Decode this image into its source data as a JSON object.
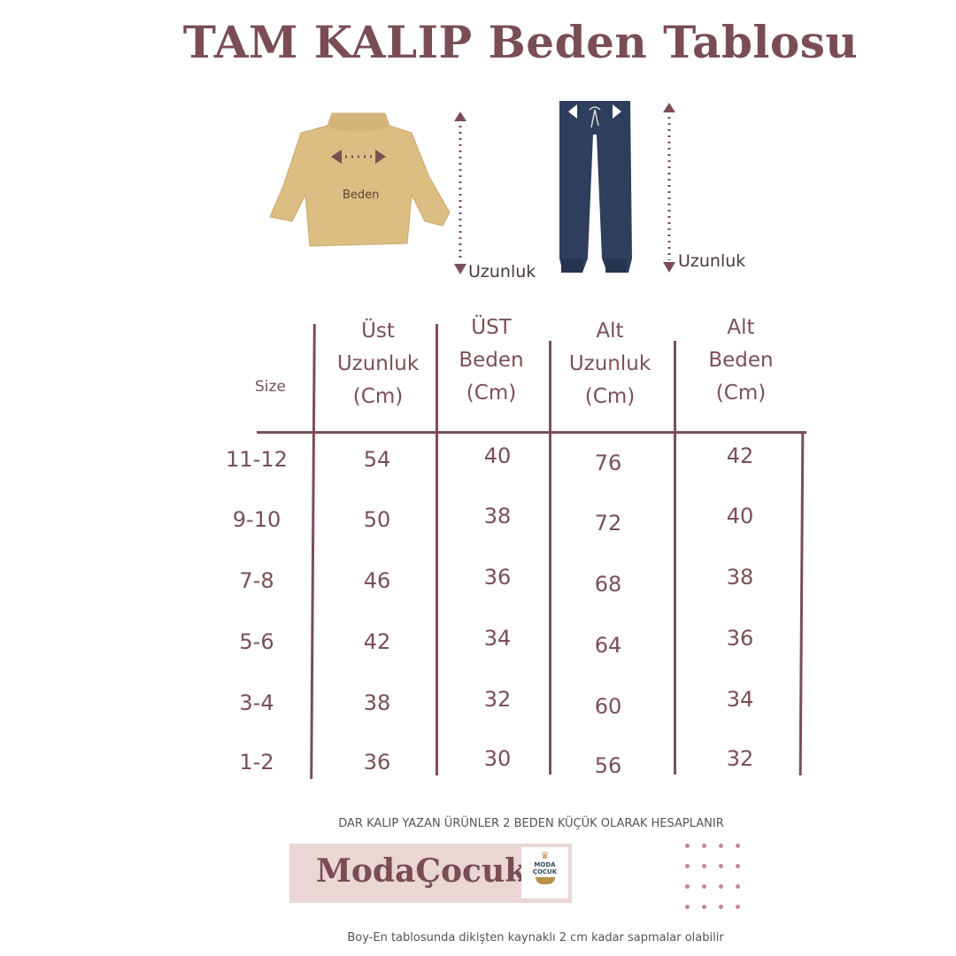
{
  "title": "TAM KALIP Beden Tablosu",
  "illustration": {
    "sweater_label": "Beden",
    "sweater_length_label": "Uzunluk",
    "pants_length_label": "Uzunluk"
  },
  "table": {
    "headers": [
      "Size",
      "Üst Uzunluk (Cm)",
      "ÜST Beden (Cm)",
      "Alt Uzunluk (Cm)",
      "Alt Beden (Cm)"
    ],
    "header_lines": [
      [
        "Size"
      ],
      [
        "Üst",
        "Uzunluk",
        "(Cm)"
      ],
      [
        "ÜST",
        "Beden",
        "(Cm)"
      ],
      [
        "Alt",
        "Uzunluk",
        "(Cm)"
      ],
      [
        "Alt",
        "Beden",
        "(Cm)"
      ]
    ],
    "rows": [
      [
        "11-12",
        "54",
        "40",
        "76",
        "42"
      ],
      [
        "9-10",
        "50",
        "38",
        "72",
        "40"
      ],
      [
        "7-8",
        "46",
        "36",
        "68",
        "38"
      ],
      [
        "5-6",
        "42",
        "34",
        "64",
        "36"
      ],
      [
        "3-4",
        "38",
        "32",
        "60",
        "34"
      ],
      [
        "1-2",
        "36",
        "30",
        "56",
        "32"
      ]
    ]
  },
  "notice": "DAR KALIP YAZAN ÜRÜNLER 2 BEDEN KÜÇÜK OLARAK  HESAPLANIR",
  "brand": {
    "name": "ModaÇocuk",
    "logo_text": [
      "MODA",
      "ÇOCUK"
    ]
  },
  "footer": "Boy-En tablosunda dikişten kaynaklı 2 cm kadar sapmalar olabilir",
  "colors": {
    "accent": "#7a4f57",
    "brand_bg": "#ead6d4",
    "sweater": "#dcbd82",
    "pants": "#2e3e5c",
    "dots": "#c08a93"
  }
}
